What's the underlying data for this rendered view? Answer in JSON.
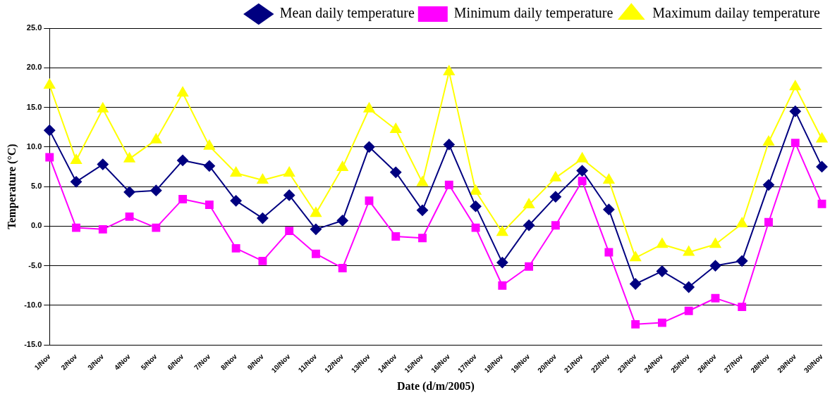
{
  "chart_data": {
    "type": "line",
    "xlabel": "Date (d/m/2005)",
    "ylabel": "Temperature (°C)",
    "categories": [
      "1/Nov",
      "2/Nov",
      "3/Nov",
      "4/Nov",
      "5/Nov",
      "6/Nov",
      "7/Nov",
      "8/Nov",
      "9/Nov",
      "10/Nov",
      "11/Nov",
      "12/Nov",
      "13/Nov",
      "14/Nov",
      "15/Nov",
      "16/Nov",
      "17/Nov",
      "18/Nov",
      "19/Nov",
      "20/Nov",
      "21/Nov",
      "22/Nov",
      "23/Nov",
      "24/Nov",
      "25/Nov",
      "26/Nov",
      "27/Nov",
      "28/Nov",
      "29/Nov",
      "30/Nov"
    ],
    "series": [
      {
        "name": "Mean daily temperature",
        "color": "#000080",
        "marker": "diamond",
        "values": [
          12.1,
          5.6,
          7.8,
          4.3,
          4.5,
          8.3,
          7.6,
          3.2,
          1.0,
          3.9,
          -0.4,
          0.7,
          10.0,
          6.8,
          2.0,
          10.3,
          2.5,
          -4.6,
          0.1,
          3.7,
          7.0,
          2.1,
          -7.3,
          -5.7,
          -7.7,
          -5.0,
          -4.4,
          5.2,
          14.5,
          7.5
        ]
      },
      {
        "name": "Minimum daily temperature",
        "color": "#ff00ff",
        "marker": "square",
        "values": [
          8.7,
          -0.2,
          -0.4,
          1.2,
          -0.2,
          3.4,
          2.7,
          -2.8,
          -4.4,
          -0.6,
          -3.5,
          -5.3,
          3.2,
          -1.3,
          -1.5,
          5.2,
          -0.2,
          -7.5,
          -5.1,
          0.1,
          5.7,
          -3.3,
          -12.4,
          -12.2,
          -10.7,
          -9.1,
          -10.2,
          0.5,
          10.5,
          2.8
        ]
      },
      {
        "name": "Maximum dailay temperature",
        "color": "#ffff00",
        "marker": "triangle",
        "values": [
          17.8,
          8.3,
          14.8,
          8.5,
          10.9,
          16.8,
          10.1,
          6.7,
          5.8,
          6.7,
          1.6,
          7.4,
          14.8,
          12.2,
          5.5,
          19.5,
          4.4,
          -0.8,
          2.7,
          6.1,
          8.5,
          5.8,
          -4.0,
          -2.3,
          -3.3,
          -2.3,
          0.3,
          10.6,
          17.6,
          11.0
        ]
      }
    ],
    "ylim": [
      -15,
      25
    ],
    "yticks": [
      {
        "value": -15,
        "label": "-15.0"
      },
      {
        "value": -10,
        "label": "-10.0"
      },
      {
        "value": -5,
        "label": "-5.0"
      },
      {
        "value": 0,
        "label": "0.0"
      },
      {
        "value": 5,
        "label": "5.0"
      },
      {
        "value": 10,
        "label": "10.0"
      },
      {
        "value": 15,
        "label": "15.0"
      },
      {
        "value": 20,
        "label": "20.0"
      },
      {
        "value": 25,
        "label": "25.0"
      }
    ],
    "grid": "y",
    "legend": "top right"
  }
}
